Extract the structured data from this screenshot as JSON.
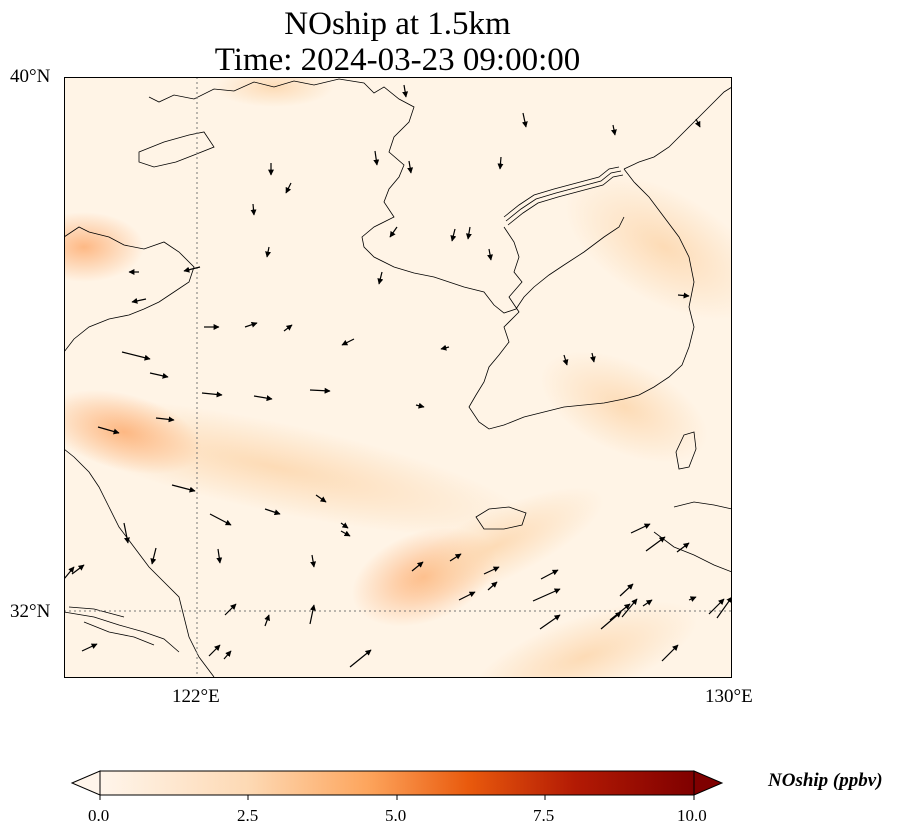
{
  "title": {
    "line1": "NOship at 1.5km",
    "line2": "Time: 2024-03-23 09:00:00"
  },
  "map": {
    "lat_ticks": [
      "40°N",
      "32°N"
    ],
    "lon_ticks": [
      "122°E",
      "130°E"
    ],
    "gridlines": "dotted",
    "extent": {
      "lon": [
        120,
        130
      ],
      "lat": [
        31,
        40
      ]
    }
  },
  "colorbar": {
    "label": "NOship (ppbv)",
    "ticks": [
      "0.0",
      "2.5",
      "5.0",
      "7.5",
      "10.0"
    ],
    "range": [
      0,
      10
    ],
    "extend": "both",
    "colormap": [
      "#fff5eb",
      "#fdd9b4",
      "#fda55d",
      "#e95a0d",
      "#a81a0a",
      "#7f0000"
    ]
  }
}
